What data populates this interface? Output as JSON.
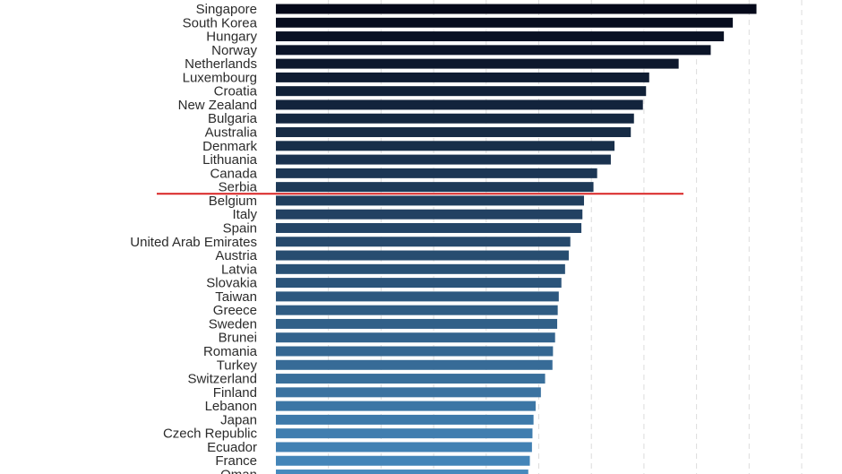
{
  "chart_data": {
    "type": "bar",
    "orientation": "horizontal",
    "title": "",
    "xlabel": "",
    "ylabel": "",
    "xlim": [
      0,
      100
    ],
    "grid": true,
    "legend": "none",
    "color_scale": [
      "#05091a",
      "#4689bd"
    ],
    "reference_line": {
      "after_category": "Serbia",
      "color": "#d92323"
    },
    "categories": [
      "Singapore",
      "South Korea",
      "Hungary",
      "Norway",
      "Netherlands",
      "Luxembourg",
      "Croatia",
      "New Zealand",
      "Bulgaria",
      "Australia",
      "Denmark",
      "Lithuania",
      "Canada",
      "Serbia",
      "Belgium",
      "Italy",
      "Spain",
      "United Arab Emirates",
      "Austria",
      "Latvia",
      "Slovakia",
      "Taiwan",
      "Greece",
      "Sweden",
      "Brunei",
      "Romania",
      "Turkey",
      "Switzerland",
      "Finland",
      "Lebanon",
      "Japan",
      "Czech Republic",
      "Ecuador",
      "France",
      "Oman"
    ],
    "values": [
      91.4,
      86.9,
      85.2,
      82.7,
      76.6,
      71.0,
      70.4,
      69.8,
      68.1,
      67.5,
      64.4,
      63.7,
      61.1,
      60.4,
      58.6,
      58.3,
      58.1,
      56.0,
      55.7,
      55.0,
      54.3,
      53.8,
      53.6,
      53.5,
      53.1,
      52.7,
      52.6,
      51.2,
      50.4,
      49.4,
      49.0,
      48.8,
      48.7,
      48.3,
      48.0
    ]
  }
}
